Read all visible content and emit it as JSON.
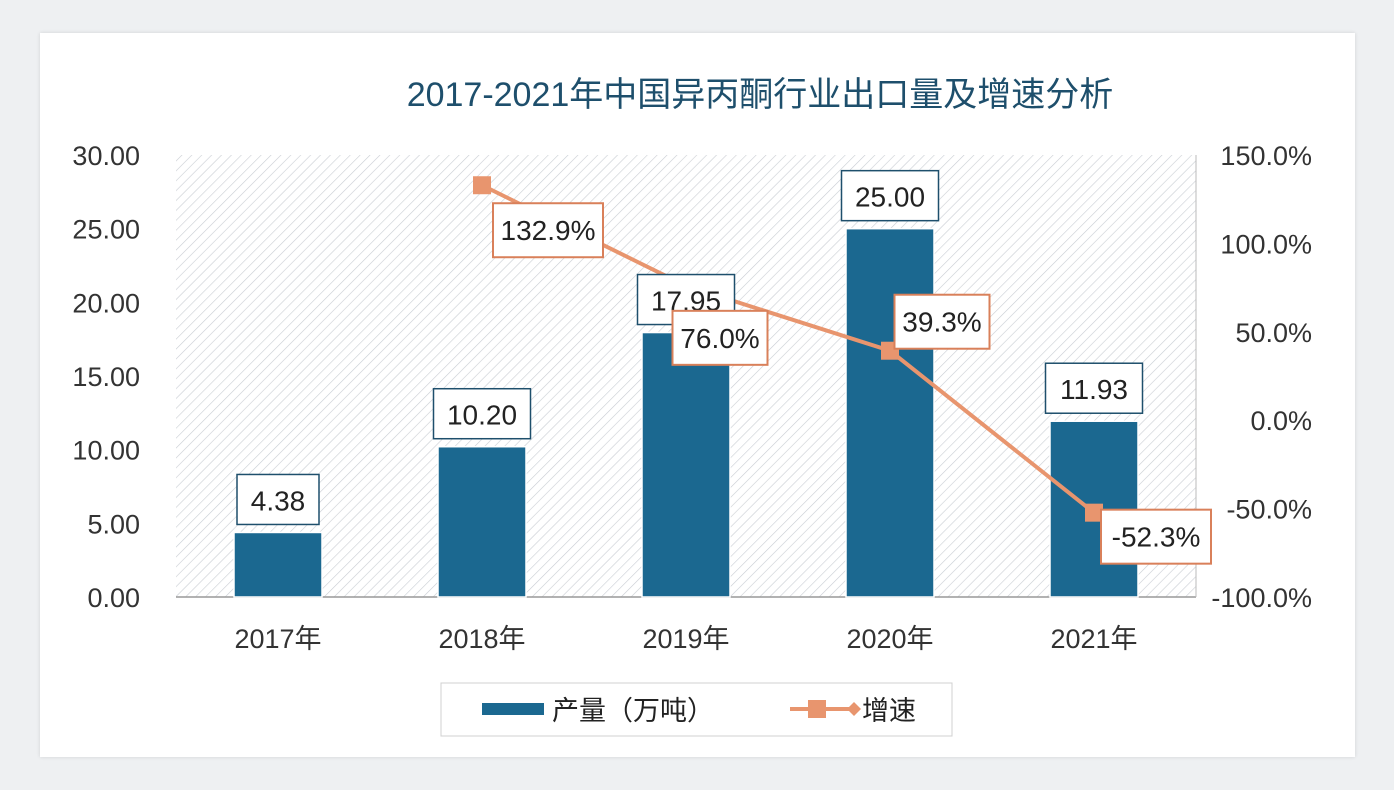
{
  "chart_data": {
    "type": "bar+line",
    "title": "2017-2021年中国异丙酮行业出口量及增速分析",
    "categories": [
      "2017年",
      "2018年",
      "2019年",
      "2020年",
      "2021年"
    ],
    "series": [
      {
        "name": "产量（万吨）",
        "type": "bar",
        "axis": "left",
        "values": [
          4.38,
          10.2,
          17.95,
          25.0,
          11.93
        ],
        "labels": [
          "4.38",
          "10.20",
          "17.95",
          "25.00",
          "11.93"
        ],
        "color": "#1b6890"
      },
      {
        "name": "增速",
        "type": "line",
        "axis": "right",
        "values": [
          null,
          132.9,
          76.0,
          39.3,
          -52.3
        ],
        "labels": [
          "",
          "132.9%",
          "76.0%",
          "39.3%",
          "-52.3%"
        ],
        "color": "#e8956e"
      }
    ],
    "left_axis": {
      "range": [
        0,
        30
      ],
      "ticks": [
        "0.00",
        "5.00",
        "10.00",
        "15.00",
        "20.00",
        "25.00",
        "30.00"
      ]
    },
    "right_axis": {
      "range": [
        -100,
        150
      ],
      "ticks": [
        "-100.0%",
        "-50.0%",
        "0.0%",
        "50.0%",
        "100.0%",
        "150.0%"
      ]
    },
    "legend": {
      "position": "bottom",
      "items": [
        "产量（万吨）",
        "增速"
      ]
    }
  }
}
